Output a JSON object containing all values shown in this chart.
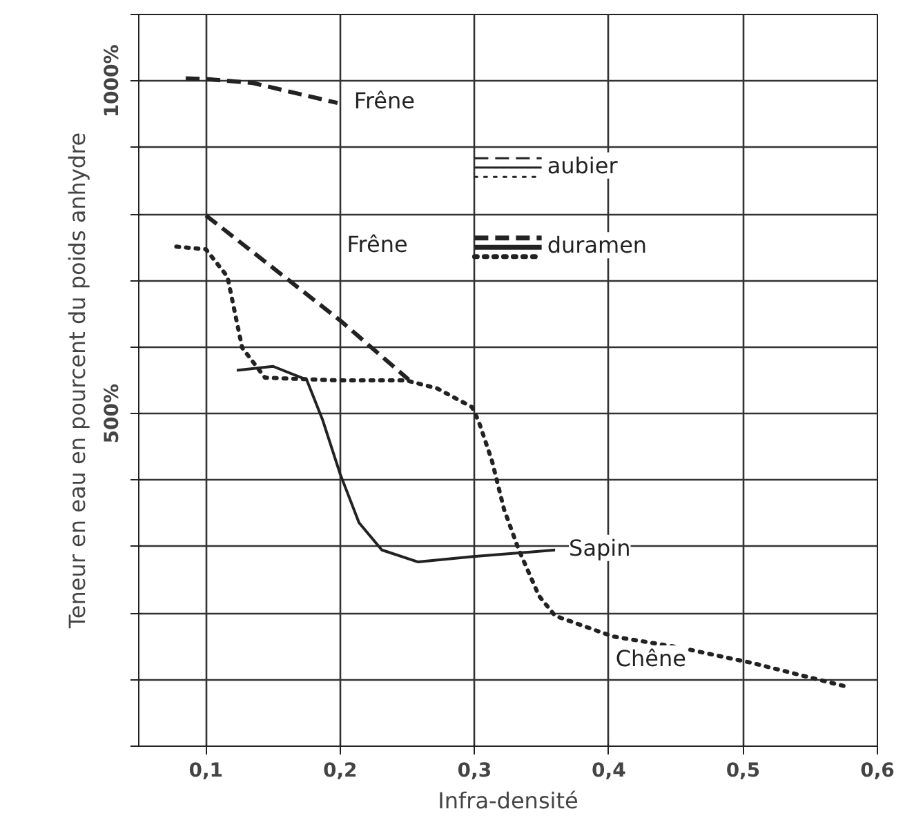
{
  "chart_data": {
    "type": "line",
    "xlabel": "Infra-densité",
    "ylabel": "Teneur en eau en pourcent du poids anhydre",
    "xlim": [
      0.05,
      0.6
    ],
    "ylim": [
      0,
      1100
    ],
    "xticks": [
      {
        "value": 0.1,
        "label": "0,1"
      },
      {
        "value": 0.2,
        "label": "0,2"
      },
      {
        "value": 0.3,
        "label": "0,3"
      },
      {
        "value": 0.4,
        "label": "0,4"
      },
      {
        "value": 0.5,
        "label": "0,5"
      },
      {
        "value": 0.6,
        "label": "0,6"
      }
    ],
    "yticks": [
      {
        "value": 0,
        "label": null
      },
      {
        "value": 100,
        "label": null
      },
      {
        "value": 200,
        "label": null
      },
      {
        "value": 300,
        "label": null
      },
      {
        "value": 400,
        "label": null
      },
      {
        "value": 500,
        "label": "500%"
      },
      {
        "value": 600,
        "label": null
      },
      {
        "value": 700,
        "label": null
      },
      {
        "value": 800,
        "label": null
      },
      {
        "value": 900,
        "label": null
      },
      {
        "value": 1000,
        "label": "1000%"
      },
      {
        "value": 1100,
        "label": null
      }
    ],
    "grid": true,
    "marker": "none",
    "series": [
      {
        "color": "#222222",
        "line_style": "dashed",
        "x": [
          0.085,
          0.1,
          0.135,
          0.198
        ],
        "values": [
          1004,
          1003,
          997,
          967
        ]
      },
      {
        "color": "#222222",
        "line_style": "dashed",
        "x": [
          0.1,
          0.2,
          0.251
        ],
        "values": [
          798,
          640,
          551
        ]
      },
      {
        "color": "#222222",
        "line_style": "dotted",
        "x": [
          0.078,
          0.1,
          0.116,
          0.127,
          0.144,
          0.198,
          0.249,
          0.272,
          0.298,
          0.303,
          0.313,
          0.322,
          0.333,
          0.348,
          0.36,
          0.403,
          0.451,
          0.507,
          0.576
        ],
        "values": [
          751,
          747,
          706,
          599,
          554,
          550,
          550,
          538,
          510,
          489,
          429,
          356,
          295,
          226,
          196,
          165,
          149,
          125,
          90
        ]
      },
      {
        "color": "#222222",
        "line_style": "solid",
        "x": [
          0.123,
          0.15,
          0.175,
          0.187,
          0.2,
          0.214,
          0.231,
          0.258,
          0.299,
          0.36
        ],
        "values": [
          565,
          571,
          551,
          490,
          409,
          336,
          295,
          277,
          285,
          295
        ]
      }
    ],
    "annotations": [
      {
        "text": "Frêne",
        "x": 0.2,
        "y": 967
      },
      "Frêne",
      {
        "text": "Sapin",
        "x": 0.36,
        "y": 295
      },
      "Chêne",
      "aubier",
      "duramen"
    ]
  }
}
